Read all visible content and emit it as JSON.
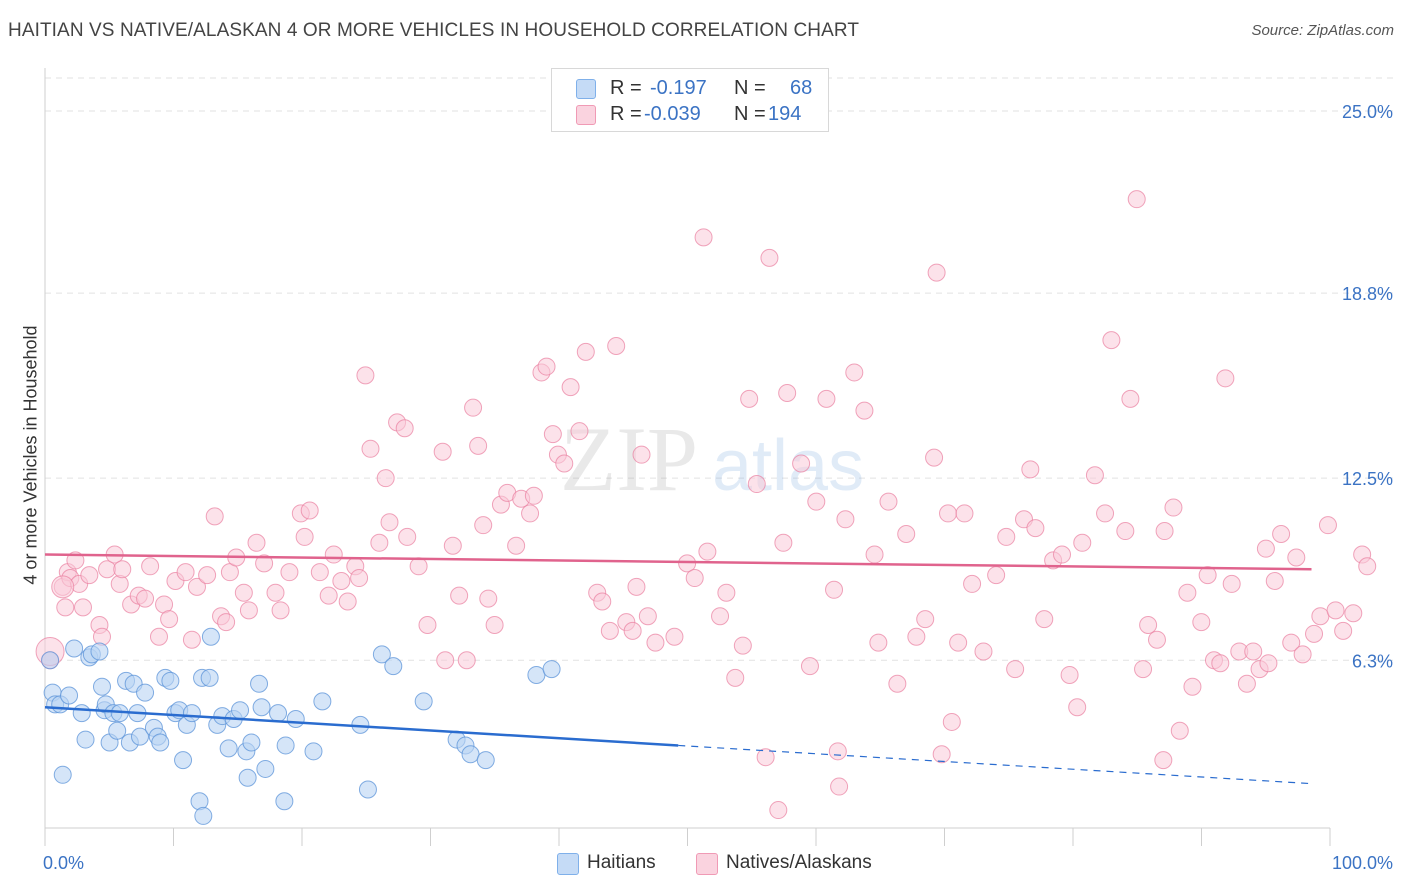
{
  "title": "HAITIAN VS NATIVE/ALASKAN 4 OR MORE VEHICLES IN HOUSEHOLD CORRELATION CHART",
  "source": "Source: ZipAtlas.com",
  "watermark": {
    "zip": "ZIP",
    "atlas": "atlas"
  },
  "legend_top": {
    "rows": [
      {
        "r_label": "R =",
        "r_value": "-0.197",
        "n_label": "N =",
        "n_value": "68",
        "color": "#7fb0ea",
        "fill": "#c5dbf6"
      },
      {
        "r_label": "R =",
        "r_value": "-0.039",
        "n_label": "N =",
        "n_value": "194",
        "color": "#f09ab5",
        "fill": "#fad3df"
      }
    ]
  },
  "legend_bottom": [
    {
      "label": "Haitians",
      "color": "#7fb0ea",
      "fill": "#c5dbf6"
    },
    {
      "label": "Natives/Alaskans",
      "color": "#f09ab5",
      "fill": "#fad3df"
    }
  ],
  "chart_data": {
    "type": "scatter",
    "title": "HAITIAN VS NATIVE/ALASKAN 4 OR MORE VEHICLES IN HOUSEHOLD CORRELATION CHART",
    "xlabel": "",
    "ylabel": "4 or more Vehicles in Household",
    "xlim": [
      0,
      100
    ],
    "ylim": [
      0,
      26
    ],
    "x_tick_labels": [
      "0.0%",
      "100.0%"
    ],
    "y_ticks": [
      6.3,
      12.5,
      18.8,
      25.0
    ],
    "y_tick_labels": [
      "6.3%",
      "12.5%",
      "18.8%",
      "25.0%"
    ],
    "grid": "horizontal dashed",
    "series": [
      {
        "name": "Haitians",
        "color": "#5b93d8",
        "fill": "#b9d3f3",
        "trend": {
          "x": [
            0,
            50
          ],
          "y": [
            4.7,
            3.4
          ],
          "dashed_to": [
            100,
            2.1
          ]
        },
        "points": [
          [
            0.4,
            6.3
          ],
          [
            0.6,
            5.2
          ],
          [
            0.8,
            4.8
          ],
          [
            1.2,
            4.8
          ],
          [
            1.4,
            2.4
          ],
          [
            1.9,
            5.1
          ],
          [
            2.3,
            6.7
          ],
          [
            2.9,
            4.5
          ],
          [
            3.2,
            3.6
          ],
          [
            3.5,
            6.4
          ],
          [
            3.7,
            6.5
          ],
          [
            4.3,
            6.6
          ],
          [
            4.5,
            5.4
          ],
          [
            4.7,
            4.6
          ],
          [
            4.8,
            4.8
          ],
          [
            5.1,
            3.5
          ],
          [
            5.4,
            4.5
          ],
          [
            5.7,
            3.9
          ],
          [
            5.9,
            4.5
          ],
          [
            6.4,
            5.6
          ],
          [
            6.7,
            3.5
          ],
          [
            7.0,
            5.5
          ],
          [
            7.3,
            4.5
          ],
          [
            7.5,
            3.7
          ],
          [
            7.9,
            5.2
          ],
          [
            8.6,
            4.0
          ],
          [
            8.9,
            3.7
          ],
          [
            9.1,
            3.5
          ],
          [
            9.5,
            5.7
          ],
          [
            9.9,
            5.6
          ],
          [
            10.3,
            4.5
          ],
          [
            10.6,
            4.6
          ],
          [
            10.9,
            2.9
          ],
          [
            11.2,
            4.1
          ],
          [
            11.6,
            4.5
          ],
          [
            12.2,
            1.5
          ],
          [
            12.4,
            5.7
          ],
          [
            12.5,
            1.0
          ],
          [
            13.0,
            5.7
          ],
          [
            13.1,
            7.1
          ],
          [
            13.6,
            4.1
          ],
          [
            14.0,
            4.4
          ],
          [
            14.5,
            3.3
          ],
          [
            14.9,
            4.3
          ],
          [
            15.4,
            4.6
          ],
          [
            15.9,
            3.2
          ],
          [
            16.0,
            2.3
          ],
          [
            16.3,
            3.5
          ],
          [
            16.9,
            5.5
          ],
          [
            17.1,
            4.7
          ],
          [
            17.4,
            2.6
          ],
          [
            18.4,
            4.5
          ],
          [
            18.9,
            1.5
          ],
          [
            19.0,
            3.4
          ],
          [
            19.8,
            4.3
          ],
          [
            21.2,
            3.2
          ],
          [
            21.9,
            4.9
          ],
          [
            24.9,
            4.1
          ],
          [
            25.5,
            1.9
          ],
          [
            26.6,
            6.5
          ],
          [
            27.5,
            6.1
          ],
          [
            29.9,
            4.9
          ],
          [
            32.5,
            3.6
          ],
          [
            33.2,
            3.4
          ],
          [
            33.6,
            3.1
          ],
          [
            34.8,
            2.9
          ],
          [
            38.8,
            5.8
          ],
          [
            40.0,
            6.0
          ]
        ]
      },
      {
        "name": "Natives/Alaskans",
        "color": "#ea7fa0",
        "fill": "#f9cad8",
        "trend": {
          "x": [
            0,
            100
          ],
          "y": [
            9.9,
            9.4
          ]
        },
        "points": [
          [
            0.4,
            6.3
          ],
          [
            1.4,
            8.8
          ],
          [
            1.6,
            8.1
          ],
          [
            1.8,
            9.3
          ],
          [
            2.0,
            9.1
          ],
          [
            2.4,
            9.7
          ],
          [
            2.7,
            8.9
          ],
          [
            3.0,
            8.1
          ],
          [
            3.5,
            9.2
          ],
          [
            4.3,
            7.5
          ],
          [
            4.5,
            7.1
          ],
          [
            4.9,
            9.4
          ],
          [
            5.5,
            9.9
          ],
          [
            5.9,
            8.9
          ],
          [
            6.1,
            9.4
          ],
          [
            6.8,
            8.2
          ],
          [
            7.4,
            8.5
          ],
          [
            7.9,
            8.4
          ],
          [
            8.3,
            9.5
          ],
          [
            9.0,
            7.1
          ],
          [
            9.4,
            8.2
          ],
          [
            9.8,
            7.7
          ],
          [
            10.3,
            9.0
          ],
          [
            11.1,
            9.3
          ],
          [
            11.6,
            7.0
          ],
          [
            12.0,
            8.8
          ],
          [
            12.8,
            9.2
          ],
          [
            13.4,
            11.2
          ],
          [
            13.9,
            7.8
          ],
          [
            14.3,
            7.6
          ],
          [
            14.6,
            9.3
          ],
          [
            15.1,
            9.8
          ],
          [
            15.7,
            8.6
          ],
          [
            16.1,
            8.0
          ],
          [
            16.7,
            10.3
          ],
          [
            17.3,
            9.6
          ],
          [
            18.2,
            8.6
          ],
          [
            18.6,
            8.0
          ],
          [
            19.3,
            9.3
          ],
          [
            20.2,
            11.3
          ],
          [
            20.5,
            10.5
          ],
          [
            20.9,
            11.4
          ],
          [
            21.7,
            9.3
          ],
          [
            22.4,
            8.5
          ],
          [
            22.8,
            9.9
          ],
          [
            23.4,
            9.0
          ],
          [
            23.9,
            8.3
          ],
          [
            24.5,
            9.5
          ],
          [
            24.8,
            9.1
          ],
          [
            25.3,
            16.0
          ],
          [
            25.7,
            13.5
          ],
          [
            26.4,
            10.3
          ],
          [
            26.9,
            12.5
          ],
          [
            27.2,
            11.0
          ],
          [
            27.8,
            14.4
          ],
          [
            28.4,
            14.2
          ],
          [
            28.6,
            10.5
          ],
          [
            29.5,
            9.5
          ],
          [
            30.2,
            7.5
          ],
          [
            31.4,
            13.4
          ],
          [
            31.6,
            6.3
          ],
          [
            32.2,
            10.2
          ],
          [
            32.7,
            8.5
          ],
          [
            33.3,
            6.3
          ],
          [
            33.8,
            14.9
          ],
          [
            34.2,
            13.6
          ],
          [
            34.6,
            10.9
          ],
          [
            35.0,
            8.4
          ],
          [
            35.5,
            7.5
          ],
          [
            36.0,
            11.6
          ],
          [
            36.5,
            12.0
          ],
          [
            37.2,
            10.2
          ],
          [
            37.6,
            11.8
          ],
          [
            38.3,
            11.3
          ],
          [
            38.6,
            11.9
          ],
          [
            39.2,
            16.1
          ],
          [
            39.6,
            16.3
          ],
          [
            40.1,
            14.0
          ],
          [
            40.5,
            13.3
          ],
          [
            41.0,
            13.0
          ],
          [
            41.5,
            15.6
          ],
          [
            42.2,
            14.1
          ],
          [
            42.7,
            16.8
          ],
          [
            43.6,
            8.6
          ],
          [
            44.0,
            8.3
          ],
          [
            44.6,
            7.3
          ],
          [
            45.1,
            17.0
          ],
          [
            45.9,
            7.6
          ],
          [
            46.4,
            7.3
          ],
          [
            46.7,
            8.8
          ],
          [
            47.1,
            13.3
          ],
          [
            47.6,
            7.8
          ],
          [
            48.2,
            6.9
          ],
          [
            49.7,
            7.1
          ],
          [
            50.7,
            9.6
          ],
          [
            51.3,
            9.1
          ],
          [
            52.0,
            20.7
          ],
          [
            52.3,
            10.0
          ],
          [
            53.3,
            7.8
          ],
          [
            53.8,
            8.6
          ],
          [
            54.5,
            5.7
          ],
          [
            55.1,
            6.8
          ],
          [
            55.6,
            15.2
          ],
          [
            56.2,
            12.3
          ],
          [
            56.9,
            3.0
          ],
          [
            57.2,
            20.0
          ],
          [
            57.9,
            1.2
          ],
          [
            58.3,
            10.3
          ],
          [
            58.6,
            15.4
          ],
          [
            59.7,
            13.0
          ],
          [
            60.4,
            6.1
          ],
          [
            60.9,
            11.7
          ],
          [
            61.7,
            15.2
          ],
          [
            62.3,
            8.7
          ],
          [
            62.6,
            3.2
          ],
          [
            62.7,
            2.0
          ],
          [
            63.2,
            11.1
          ],
          [
            63.9,
            16.1
          ],
          [
            64.7,
            14.8
          ],
          [
            65.5,
            9.9
          ],
          [
            65.8,
            6.9
          ],
          [
            66.6,
            11.7
          ],
          [
            67.3,
            5.5
          ],
          [
            68.0,
            10.6
          ],
          [
            68.8,
            7.1
          ],
          [
            69.5,
            7.7
          ],
          [
            70.2,
            13.2
          ],
          [
            70.8,
            3.1
          ],
          [
            71.3,
            11.3
          ],
          [
            71.6,
            4.2
          ],
          [
            72.1,
            6.9
          ],
          [
            72.6,
            11.3
          ],
          [
            73.2,
            8.9
          ],
          [
            74.1,
            6.6
          ],
          [
            75.1,
            9.2
          ],
          [
            75.9,
            10.5
          ],
          [
            76.6,
            6.0
          ],
          [
            77.3,
            11.1
          ],
          [
            77.8,
            12.8
          ],
          [
            78.2,
            10.8
          ],
          [
            78.9,
            7.7
          ],
          [
            79.6,
            9.7
          ],
          [
            80.3,
            9.9
          ],
          [
            80.9,
            5.8
          ],
          [
            81.5,
            4.7
          ],
          [
            81.9,
            10.3
          ],
          [
            82.9,
            12.6
          ],
          [
            83.7,
            11.3
          ],
          [
            84.2,
            17.2
          ],
          [
            85.3,
            10.7
          ],
          [
            85.7,
            15.2
          ],
          [
            86.7,
            6.0
          ],
          [
            87.1,
            7.5
          ],
          [
            87.8,
            7.0
          ],
          [
            88.4,
            10.7
          ],
          [
            89.1,
            11.5
          ],
          [
            89.6,
            3.9
          ],
          [
            90.2,
            8.6
          ],
          [
            90.6,
            5.4
          ],
          [
            91.3,
            7.6
          ],
          [
            91.8,
            9.2
          ],
          [
            92.3,
            6.3
          ],
          [
            92.8,
            6.2
          ],
          [
            93.2,
            15.9
          ],
          [
            93.7,
            8.9
          ],
          [
            94.3,
            6.6
          ],
          [
            94.9,
            5.5
          ],
          [
            95.4,
            6.6
          ],
          [
            95.9,
            6.0
          ],
          [
            96.4,
            10.1
          ],
          [
            96.6,
            6.2
          ],
          [
            97.1,
            9.0
          ],
          [
            97.6,
            10.6
          ],
          [
            98.4,
            6.9
          ],
          [
            98.8,
            9.8
          ],
          [
            99.3,
            6.5
          ],
          [
            100.2,
            7.2
          ],
          [
            100.7,
            7.8
          ],
          [
            101.3,
            10.9
          ],
          [
            101.9,
            8.0
          ],
          [
            102.5,
            7.3
          ],
          [
            103.3,
            7.9
          ],
          [
            104.0,
            9.9
          ],
          [
            104.4,
            9.5
          ],
          [
            88.3,
            2.9
          ],
          [
            70.4,
            19.5
          ],
          [
            86.2,
            22.0
          ]
        ]
      }
    ]
  }
}
